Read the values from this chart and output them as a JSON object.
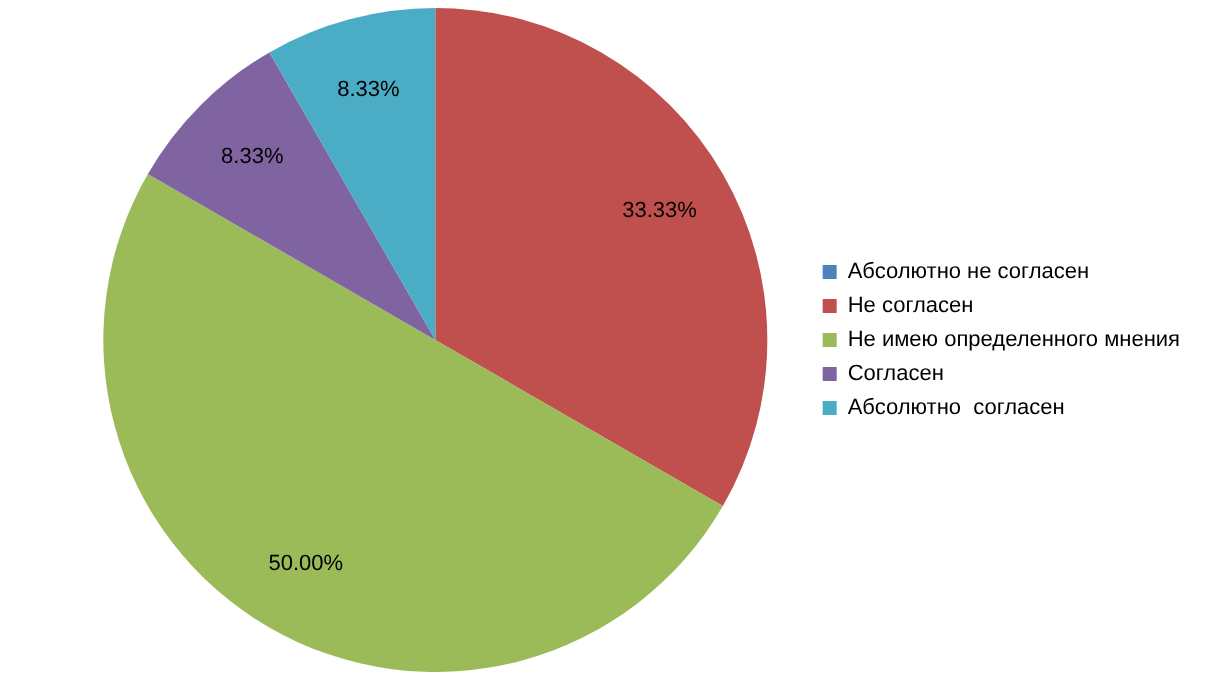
{
  "chart_data": {
    "type": "pie",
    "categories": [
      "Абсолютно не согласен",
      "Не согласен",
      "Не имею определенного мнения",
      "Согласен",
      "Абсолютно  согласен"
    ],
    "values": [
      0,
      33.33,
      50.0,
      8.33,
      8.33
    ],
    "colors": [
      "#4f81bd",
      "#c0504d",
      "#9bbb59",
      "#8064a2",
      "#4bacc6"
    ],
    "value_labels": [
      null,
      "33.33%",
      "50.00%",
      "8.33%",
      "8.33%"
    ],
    "legend": "right"
  }
}
